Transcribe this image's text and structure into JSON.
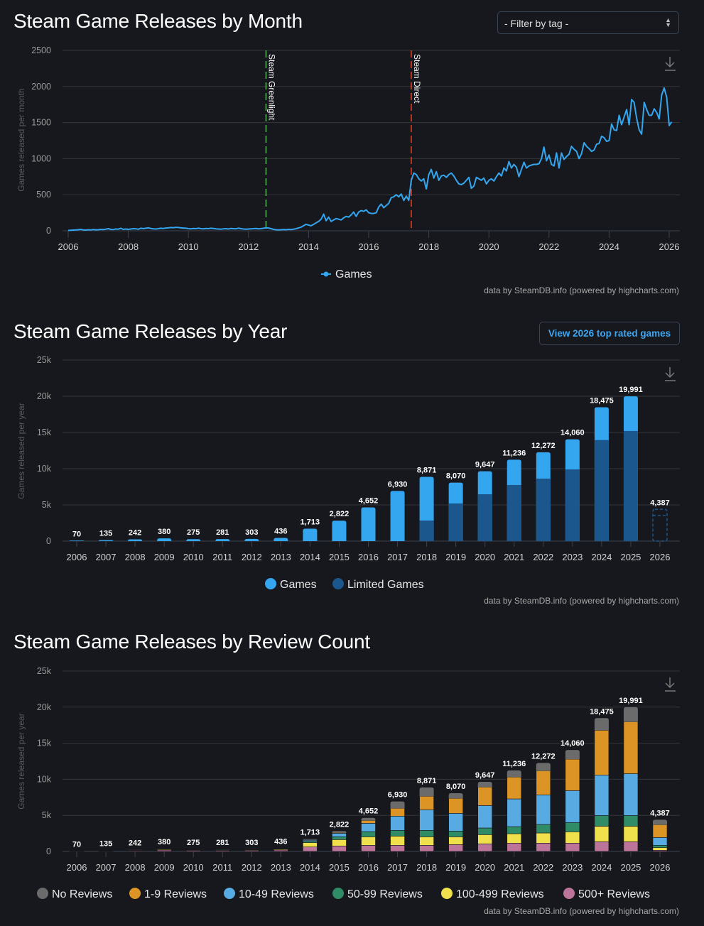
{
  "month_section": {
    "title": "Steam Game Releases by Month",
    "filter": {
      "selected": "- Filter by tag -"
    },
    "credit": "data by SteamDB.info (powered by highcharts.com)"
  },
  "year_section": {
    "title": "Steam Game Releases by Year",
    "button_label": "View 2026 top rated games",
    "credit": "data by SteamDB.info (powered by highcharts.com)"
  },
  "review_section": {
    "title": "Steam Game Releases by Review Count",
    "credit": "data by SteamDB.info (powered by highcharts.com)"
  },
  "icons": {
    "download": "download-icon",
    "select": "select-arrows-icon"
  },
  "chart_data": [
    {
      "type": "line",
      "title": "Steam Game Releases by Month",
      "ylabel": "Games released per month",
      "ylim": [
        0,
        2500
      ],
      "yticks": [
        "0",
        "500",
        "1000",
        "1500",
        "2000",
        "2500"
      ],
      "xticks": [
        "2006",
        "2008",
        "2010",
        "2012",
        "2014",
        "2016",
        "2018",
        "2020",
        "2022",
        "2024",
        "2026"
      ],
      "grid": true,
      "legend": "bottom",
      "plot_lines": [
        {
          "label": "Steam Greenlight",
          "date": "2012-08",
          "color": "#5cb85c"
        },
        {
          "label": "Steam Direct",
          "date": "2017-06",
          "color": "#e0452a"
        }
      ],
      "series": [
        {
          "name": "Games",
          "color": "#33a6ef",
          "start": "2006-01",
          "monthly_values": [
            5,
            8,
            10,
            12,
            15,
            20,
            12,
            10,
            15,
            12,
            18,
            14,
            15,
            20,
            18,
            22,
            30,
            20,
            18,
            25,
            22,
            35,
            20,
            25,
            20,
            25,
            30,
            28,
            22,
            35,
            30,
            35,
            40,
            32,
            28,
            25,
            30,
            35,
            32,
            38,
            40,
            45,
            42,
            48,
            45,
            40,
            38,
            35,
            30,
            28,
            32,
            30,
            35,
            30,
            28,
            32,
            30,
            35,
            32,
            28,
            25,
            22,
            28,
            30,
            25,
            32,
            30,
            28,
            35,
            30,
            25,
            22,
            25,
            28,
            30,
            32,
            28,
            30,
            35,
            40,
            38,
            30,
            20,
            15,
            12,
            15,
            18,
            15,
            20,
            18,
            22,
            30,
            40,
            50,
            70,
            90,
            80,
            70,
            90,
            110,
            130,
            160,
            230,
            140,
            190,
            130,
            150,
            170,
            160,
            150,
            180,
            200,
            190,
            220,
            260,
            200,
            260,
            280,
            270,
            290,
            250,
            240,
            240,
            250,
            330,
            370,
            320,
            350,
            380,
            460,
            470,
            500,
            470,
            510,
            420,
            480,
            420,
            700,
            800,
            780,
            720,
            690,
            720,
            580,
            780,
            850,
            730,
            820,
            700,
            760,
            770,
            740,
            780,
            800,
            760,
            700,
            650,
            640,
            660,
            700,
            740,
            590,
            620,
            740,
            720,
            700,
            730,
            650,
            700,
            720,
            690,
            750,
            800,
            760,
            870,
            830,
            960,
            870,
            920,
            880,
            750,
            850,
            950,
            870,
            900,
            910,
            920,
            920,
            930,
            1000,
            1160,
            970,
            1050,
            920,
            900,
            1080,
            870,
            1080,
            990,
            1030,
            1060,
            1170,
            1130,
            1100,
            1000,
            1070,
            1220,
            1170,
            1140,
            1100,
            1120,
            1200,
            1210,
            1310,
            1290,
            1240,
            1250,
            1480,
            1400,
            1390,
            1600,
            1470,
            1580,
            1680,
            1470,
            1820,
            1780,
            1560,
            1400,
            1340,
            1780,
            1680,
            1600,
            1600,
            1690,
            1640,
            1550,
            1880,
            1980,
            1850,
            1460,
            1510
          ]
        }
      ]
    },
    {
      "type": "bar",
      "title": "Steam Game Releases by Year",
      "ylabel": "Games released per year",
      "ylim": [
        0,
        25000
      ],
      "yticks": [
        "0",
        "5k",
        "10k",
        "15k",
        "20k",
        "25k"
      ],
      "grid": true,
      "legend": "bottom",
      "categories": [
        "2006",
        "2007",
        "2008",
        "2009",
        "2010",
        "2011",
        "2012",
        "2013",
        "2014",
        "2015",
        "2016",
        "2017",
        "2018",
        "2019",
        "2020",
        "2021",
        "2022",
        "2023",
        "2024",
        "2025",
        "2026"
      ],
      "totals": [
        70,
        135,
        242,
        380,
        275,
        281,
        303,
        436,
        1713,
        2822,
        4652,
        6930,
        8871,
        8070,
        9647,
        11236,
        12272,
        14060,
        18475,
        19991,
        4387
      ],
      "total_labels": [
        "70",
        "135",
        "242",
        "380",
        "275",
        "281",
        "303",
        "436",
        "1,713",
        "2,822",
        "4,652",
        "6,930",
        "8,871",
        "8,070",
        "9,647",
        "11,236",
        "12,272",
        "14,060",
        "18,475",
        "19,991",
        "4,387"
      ],
      "series": [
        {
          "name": "Games",
          "color": "#33a6ef"
        },
        {
          "name": "Limited Games",
          "color": "#1b578c",
          "values": [
            0,
            0,
            0,
            0,
            0,
            0,
            0,
            0,
            0,
            0,
            0,
            0,
            2840,
            5200,
            6470,
            7750,
            8630,
            9900,
            13950,
            15200,
            3530
          ]
        }
      ],
      "partial_category": "2026"
    },
    {
      "type": "bar",
      "stacked": true,
      "title": "Steam Game Releases by Review Count",
      "ylabel": "Games released per year",
      "ylim": [
        0,
        25000
      ],
      "yticks": [
        "0",
        "5k",
        "10k",
        "15k",
        "20k",
        "25k"
      ],
      "grid": true,
      "legend": "bottom",
      "categories": [
        "2006",
        "2007",
        "2008",
        "2009",
        "2010",
        "2011",
        "2012",
        "2013",
        "2014",
        "2015",
        "2016",
        "2017",
        "2018",
        "2019",
        "2020",
        "2021",
        "2022",
        "2023",
        "2024",
        "2025",
        "2026"
      ],
      "total_labels": [
        "70",
        "135",
        "242",
        "380",
        "275",
        "281",
        "303",
        "436",
        "1,713",
        "2,822",
        "4,652",
        "6,930",
        "8,871",
        "8,070",
        "9,647",
        "11,236",
        "12,272",
        "14,060",
        "18,475",
        "19,991",
        "4,387"
      ],
      "series": [
        {
          "name": "500+ Reviews",
          "color": "#bd749a",
          "values": [
            30,
            60,
            110,
            180,
            130,
            130,
            140,
            200,
            620,
            750,
            850,
            850,
            850,
            950,
            1050,
            1150,
            1150,
            1150,
            1340,
            1340,
            160
          ]
        },
        {
          "name": "100-499 Reviews",
          "color": "#f0e04c",
          "values": [
            20,
            35,
            60,
            90,
            70,
            70,
            75,
            110,
            590,
            890,
            1180,
            1280,
            1180,
            1080,
            1280,
            1310,
            1410,
            1570,
            2160,
            2160,
            360
          ]
        },
        {
          "name": "50-99 Reviews",
          "color": "#2f8c66",
          "values": [
            8,
            15,
            25,
            40,
            30,
            30,
            35,
            45,
            200,
            390,
            720,
            790,
            890,
            790,
            920,
            980,
            1180,
            1280,
            1480,
            1480,
            330
          ]
        },
        {
          "name": "10-49 Reviews",
          "color": "#58aae3",
          "values": [
            8,
            15,
            30,
            45,
            30,
            35,
            35,
            50,
            150,
            490,
            1150,
            1970,
            2850,
            2460,
            3110,
            3840,
            4100,
            4430,
            5600,
            5800,
            1080
          ]
        },
        {
          "name": "1-9 Reviews",
          "color": "#dc9425",
          "values": [
            2,
            5,
            10,
            15,
            10,
            10,
            12,
            20,
            50,
            100,
            390,
            1080,
            1870,
            2070,
            2560,
            3020,
            3340,
            4360,
            6200,
            7180,
            1770
          ]
        },
        {
          "name": "No Reviews",
          "color": "#6b6b6b",
          "values": [
            2,
            5,
            7,
            10,
            5,
            6,
            6,
            11,
            103,
            202,
            362,
            960,
            1231,
            720,
            727,
            936,
            1092,
            1270,
            1695,
            2031,
            687
          ]
        }
      ],
      "legend_order": [
        "No Reviews",
        "1-9 Reviews",
        "10-49 Reviews",
        "50-99 Reviews",
        "100-499 Reviews",
        "500+ Reviews"
      ]
    }
  ]
}
